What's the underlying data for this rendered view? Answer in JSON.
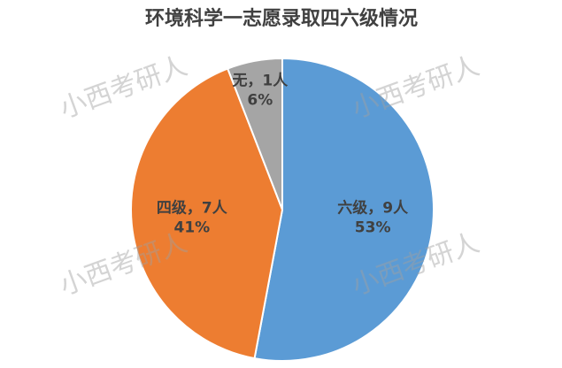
{
  "chart_data": {
    "type": "pie",
    "title": "环境科学一志愿录取四六级情况",
    "values": [
      9,
      7,
      1
    ],
    "labels": [
      "六级，9人",
      "四级，7人",
      "无，1人"
    ],
    "percent_labels": [
      "53%",
      "41%",
      "6%"
    ],
    "colors": [
      "#5b9bd5",
      "#ed7d31",
      "#a5a5a5"
    ],
    "watermarks": [
      "小西考研人",
      "小西考研人",
      "小西考研人",
      "小西考研人"
    ]
  }
}
